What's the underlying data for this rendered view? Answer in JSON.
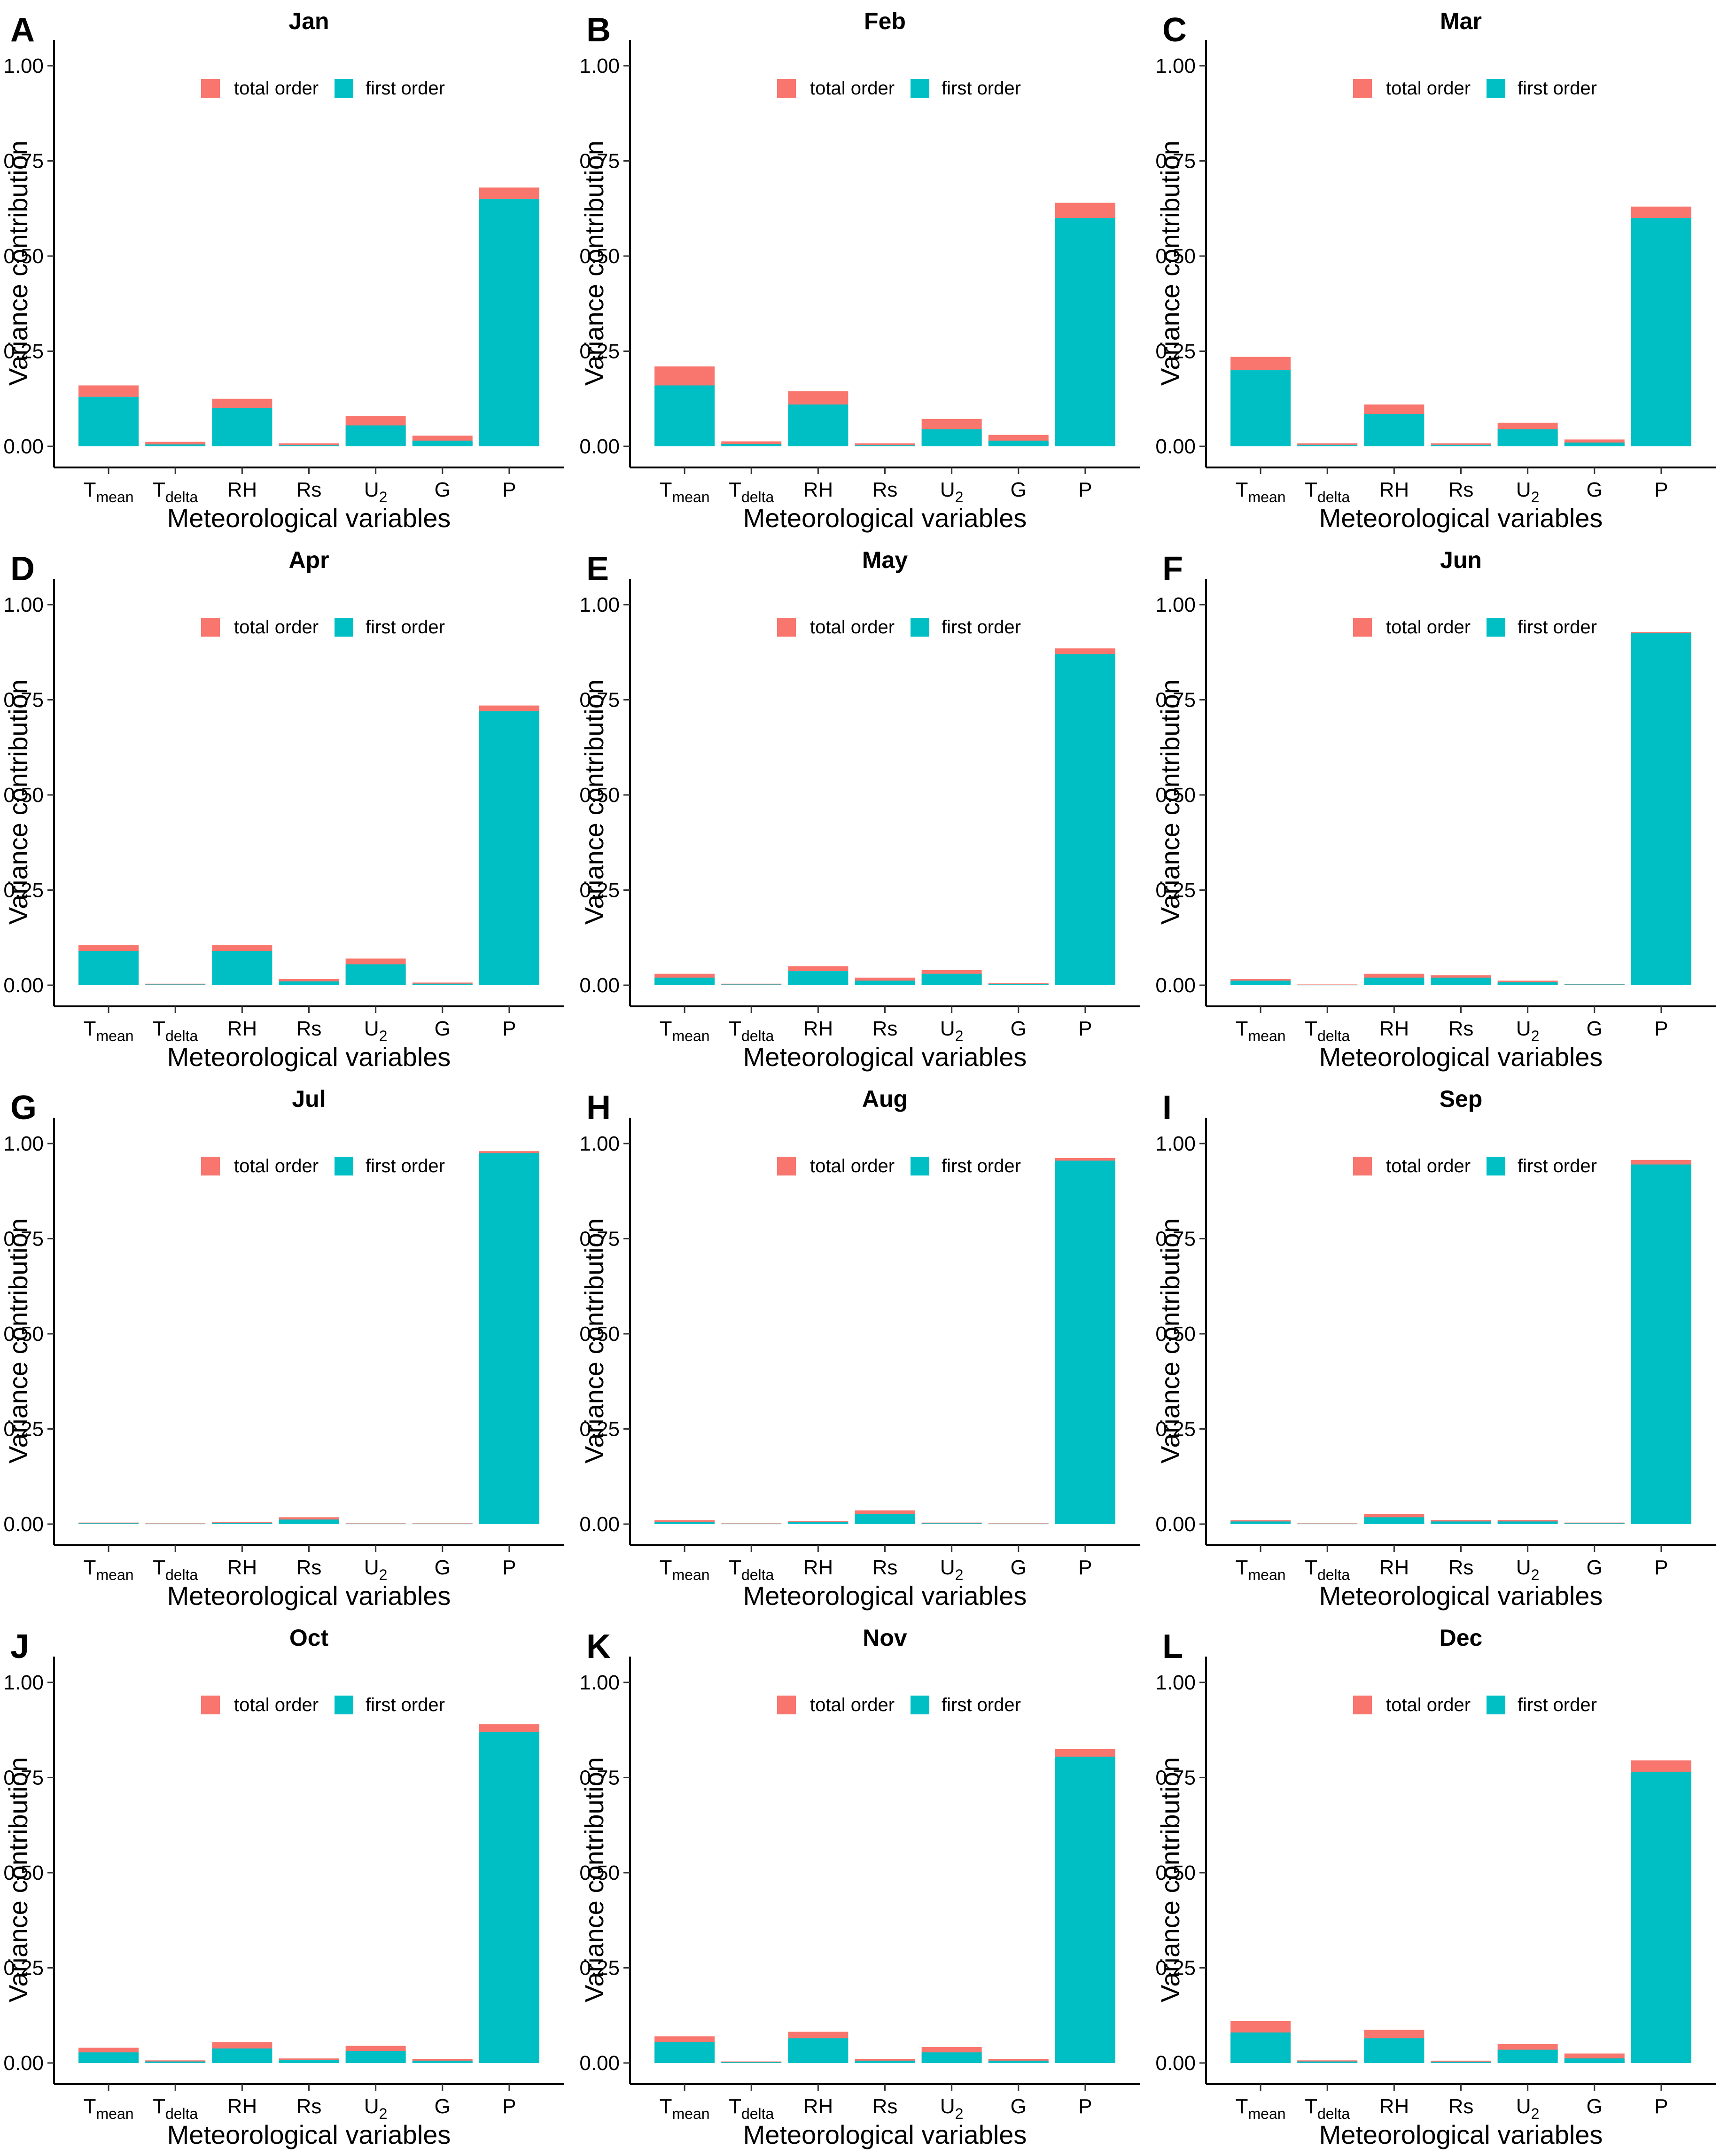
{
  "chart_data": {
    "type": "bar",
    "stacked": true,
    "xlabel": "Meteorological variables",
    "ylabel": "Variance contribution",
    "ylim": [
      0,
      1.0
    ],
    "yticks": [
      "0.00",
      "0.25",
      "0.50",
      "0.75",
      "1.00"
    ],
    "ytick_values": [
      0,
      0.25,
      0.5,
      0.75,
      1.0
    ],
    "categories": [
      {
        "main": "T",
        "sub": "mean"
      },
      {
        "main": "T",
        "sub": "delta"
      },
      {
        "main": "RH",
        "sub": ""
      },
      {
        "main": "Rs",
        "sub": ""
      },
      {
        "main": "U",
        "sub": "2"
      },
      {
        "main": "G",
        "sub": ""
      },
      {
        "main": "P",
        "sub": ""
      }
    ],
    "legend": [
      {
        "label": "total order",
        "color": "#F8766D"
      },
      {
        "label": "first order",
        "color": "#00BFC4"
      }
    ],
    "colors": {
      "total": "#F8766D",
      "first": "#00BFC4"
    },
    "panels": [
      {
        "letter": "A",
        "title": "Jan",
        "first": [
          0.13,
          0.005,
          0.1,
          0.003,
          0.055,
          0.015,
          0.65
        ],
        "total": [
          0.16,
          0.012,
          0.125,
          0.008,
          0.08,
          0.028,
          0.68
        ]
      },
      {
        "letter": "B",
        "title": "Feb",
        "first": [
          0.16,
          0.006,
          0.11,
          0.003,
          0.045,
          0.015,
          0.6
        ],
        "total": [
          0.21,
          0.013,
          0.145,
          0.008,
          0.072,
          0.03,
          0.64
        ]
      },
      {
        "letter": "C",
        "title": "Mar",
        "first": [
          0.2,
          0.004,
          0.085,
          0.004,
          0.045,
          0.01,
          0.6
        ],
        "total": [
          0.235,
          0.008,
          0.11,
          0.008,
          0.062,
          0.018,
          0.63
        ]
      },
      {
        "letter": "D",
        "title": "Apr",
        "first": [
          0.09,
          0.002,
          0.09,
          0.01,
          0.055,
          0.004,
          0.72
        ],
        "total": [
          0.105,
          0.004,
          0.105,
          0.016,
          0.07,
          0.007,
          0.735
        ]
      },
      {
        "letter": "E",
        "title": "May",
        "first": [
          0.02,
          0.002,
          0.037,
          0.012,
          0.03,
          0.003,
          0.87
        ],
        "total": [
          0.03,
          0.004,
          0.05,
          0.02,
          0.04,
          0.005,
          0.885
        ]
      },
      {
        "letter": "F",
        "title": "Jun",
        "first": [
          0.012,
          0.001,
          0.02,
          0.02,
          0.008,
          0.002,
          0.925
        ],
        "total": [
          0.016,
          0.002,
          0.03,
          0.026,
          0.012,
          0.003,
          0.928
        ]
      },
      {
        "letter": "G",
        "title": "Jul",
        "first": [
          0.002,
          0.001,
          0.003,
          0.012,
          0.001,
          0.001,
          0.975
        ],
        "total": [
          0.004,
          0.002,
          0.006,
          0.018,
          0.002,
          0.002,
          0.98
        ]
      },
      {
        "letter": "H",
        "title": "Aug",
        "first": [
          0.006,
          0.001,
          0.005,
          0.027,
          0.002,
          0.001,
          0.955
        ],
        "total": [
          0.01,
          0.002,
          0.008,
          0.036,
          0.004,
          0.002,
          0.962
        ]
      },
      {
        "letter": "I",
        "title": "Sep",
        "first": [
          0.007,
          0.001,
          0.018,
          0.007,
          0.007,
          0.002,
          0.945
        ],
        "total": [
          0.01,
          0.002,
          0.027,
          0.011,
          0.011,
          0.004,
          0.957
        ]
      },
      {
        "letter": "J",
        "title": "Oct",
        "first": [
          0.028,
          0.004,
          0.038,
          0.008,
          0.032,
          0.006,
          0.87
        ],
        "total": [
          0.04,
          0.007,
          0.055,
          0.012,
          0.045,
          0.01,
          0.89
        ]
      },
      {
        "letter": "K",
        "title": "Nov",
        "first": [
          0.055,
          0.002,
          0.065,
          0.006,
          0.028,
          0.006,
          0.805
        ],
        "total": [
          0.07,
          0.004,
          0.082,
          0.01,
          0.042,
          0.01,
          0.825
        ]
      },
      {
        "letter": "L",
        "title": "Dec",
        "first": [
          0.08,
          0.004,
          0.065,
          0.003,
          0.035,
          0.012,
          0.765
        ],
        "total": [
          0.11,
          0.007,
          0.087,
          0.006,
          0.05,
          0.025,
          0.795
        ]
      }
    ]
  }
}
